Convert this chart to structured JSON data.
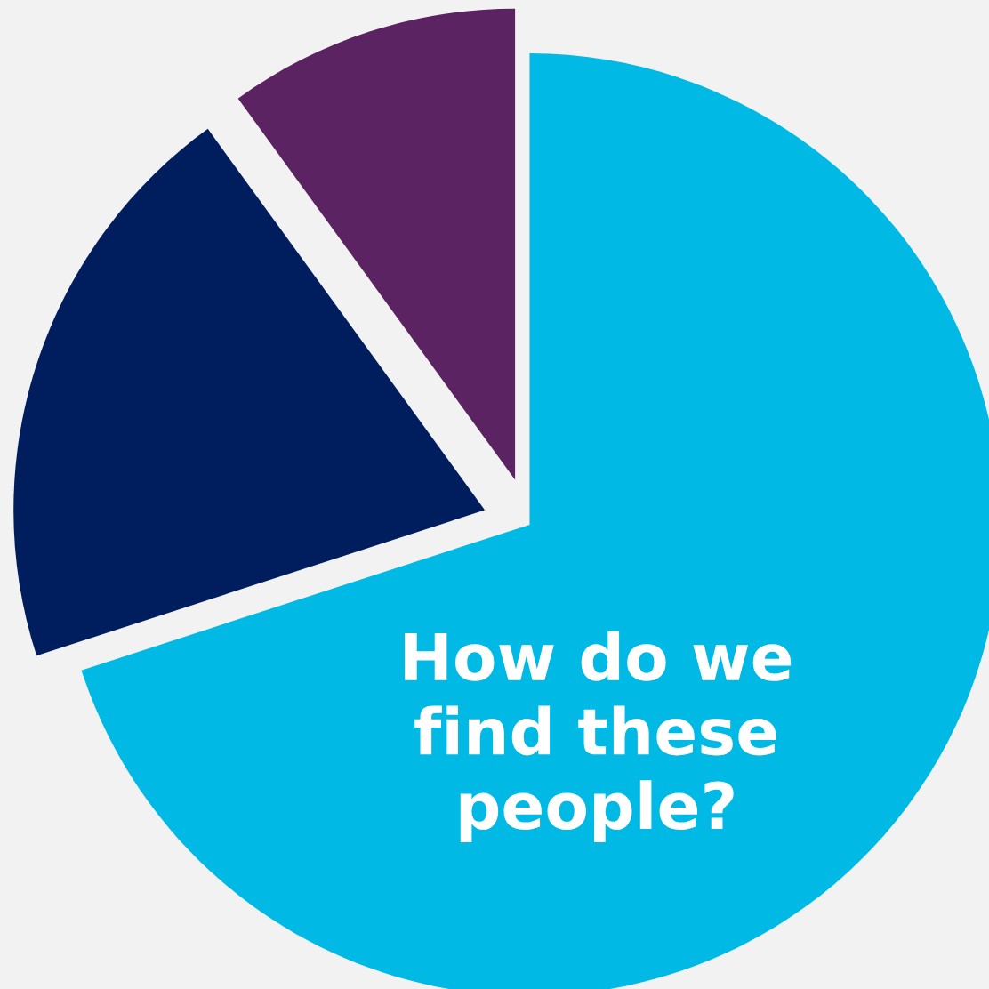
{
  "chart_data": {
    "type": "pie",
    "categories": [
      null,
      null,
      null
    ],
    "values": [
      70,
      20,
      10
    ],
    "colors": [
      "#00b9e4",
      "#001e5e",
      "#5c2362"
    ],
    "annotations": [
      "How do we\nfind these\npeople?"
    ]
  }
}
